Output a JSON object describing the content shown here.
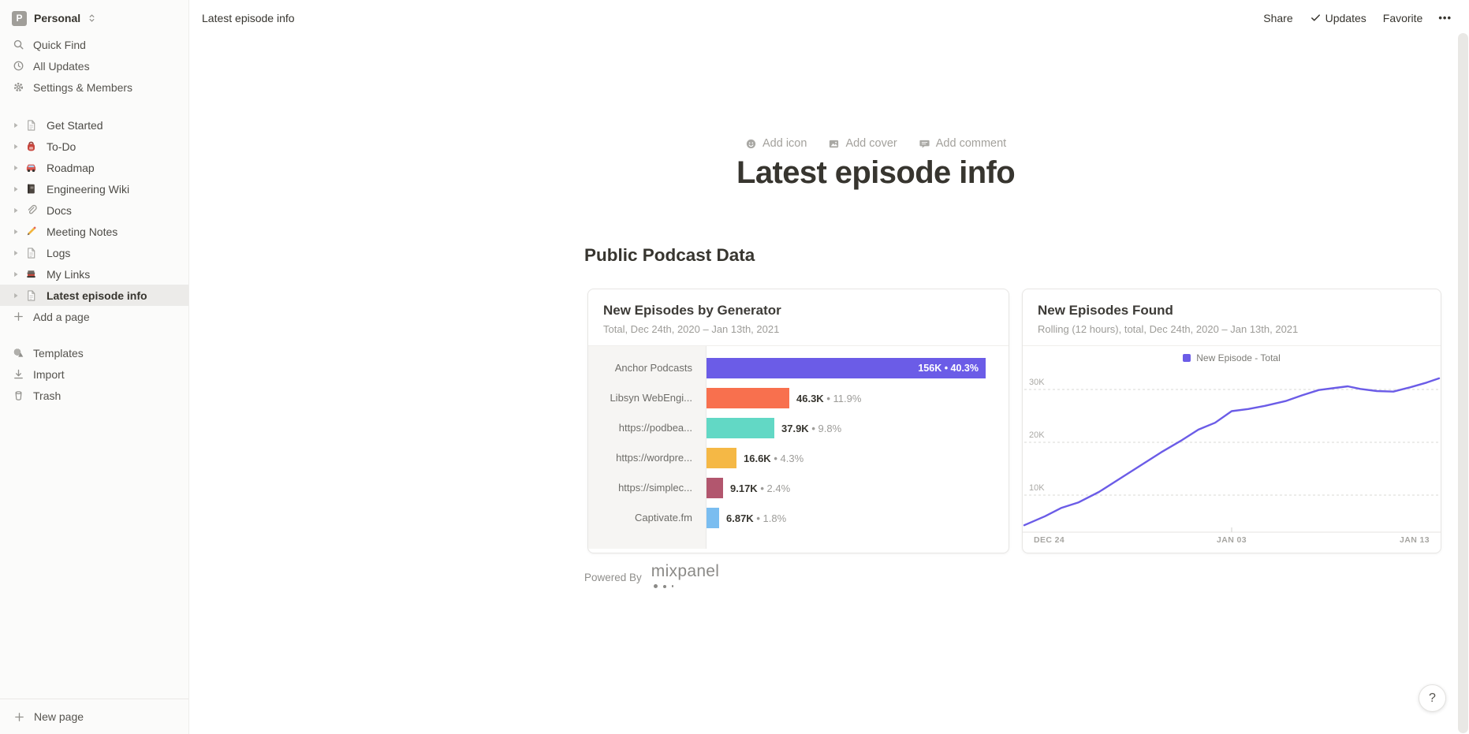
{
  "workspace": {
    "badge": "P",
    "name": "Personal"
  },
  "sidebar": {
    "top_items": [
      {
        "label": "Quick Find",
        "icon": "search-icon"
      },
      {
        "label": "All Updates",
        "icon": "clock-icon"
      },
      {
        "label": "Settings & Members",
        "icon": "gear-icon"
      }
    ],
    "pages": [
      {
        "label": "Get Started",
        "icon": "page-icon",
        "selected": false
      },
      {
        "label": "To-Do",
        "icon": "backpack-icon",
        "selected": false
      },
      {
        "label": "Roadmap",
        "icon": "car-icon",
        "selected": false
      },
      {
        "label": "Engineering Wiki",
        "icon": "notebook-icon",
        "selected": false
      },
      {
        "label": "Docs",
        "icon": "paperclip-icon",
        "selected": false
      },
      {
        "label": "Meeting Notes",
        "icon": "pencil-icon",
        "selected": false
      },
      {
        "label": "Logs",
        "icon": "page-icon",
        "selected": false
      },
      {
        "label": "My Links",
        "icon": "books-icon",
        "selected": false
      },
      {
        "label": "Latest episode info",
        "icon": "page-icon",
        "selected": true
      }
    ],
    "add_page_label": "Add a page",
    "bottom_items": [
      {
        "label": "Templates",
        "icon": "templates-icon"
      },
      {
        "label": "Import",
        "icon": "import-icon"
      },
      {
        "label": "Trash",
        "icon": "trash-icon"
      }
    ],
    "new_page_label": "New page"
  },
  "topbar": {
    "breadcrumb": "Latest episode info",
    "share_label": "Share",
    "updates_label": "Updates",
    "favorite_label": "Favorite",
    "more_label": "•••"
  },
  "page": {
    "add_icon_label": "Add icon",
    "add_cover_label": "Add cover",
    "add_comment_label": "Add comment",
    "title": "Latest episode info",
    "section_heading": "Public Podcast Data",
    "powered_by_label": "Powered By",
    "brand_label": "mixpanel"
  },
  "help_label": "?",
  "colors": {
    "accent_purple": "#6b5ce7",
    "bar_colors": [
      "#6b5ce7",
      "#f8704e",
      "#62d8c5",
      "#f5b845",
      "#b2566e",
      "#7abdf0"
    ],
    "sidebar_bg": "#fbfbfa",
    "selected_row_bg": "#ecebe9"
  },
  "chart_data": [
    {
      "type": "bar",
      "title": "New Episodes by Generator",
      "subtitle": "Total, Dec 24th, 2020 – Jan 13th, 2021",
      "categories": [
        "Anchor Podcasts",
        "Libsyn WebEngi...",
        "https://podbea...",
        "https://wordpre...",
        "https://simplec...",
        "Captivate.fm"
      ],
      "values": [
        156000,
        46300,
        37900,
        16600,
        9170,
        6870
      ],
      "value_labels": [
        "156K",
        "46.3K",
        "37.9K",
        "16.6K",
        "9.17K",
        "6.87K"
      ],
      "pct_labels": [
        "40.3%",
        "11.9%",
        "9.8%",
        "4.3%",
        "2.4%",
        "1.8%"
      ],
      "bar_colors": [
        "#6b5ce7",
        "#f8704e",
        "#62d8c5",
        "#f5b845",
        "#b2566e",
        "#7abdf0"
      ],
      "orientation": "horizontal",
      "xlabel": "",
      "ylabel": ""
    },
    {
      "type": "line",
      "title": "New Episodes Found",
      "subtitle": "Rolling (12 hours), total, Dec 24th, 2020 – Jan 13th, 2021",
      "legend": [
        {
          "name": "New Episode - Total",
          "color": "#6b5ce7"
        }
      ],
      "legend_position": "top-center",
      "grid": "dashed-horizontal",
      "ylim": [
        3000,
        35000
      ],
      "yticks": [
        {
          "label": "10K",
          "value": 10000
        },
        {
          "label": "20K",
          "value": 20000
        },
        {
          "label": "30K",
          "value": 30000
        }
      ],
      "xticks": [
        {
          "label": "DEC 24",
          "t": 0
        },
        {
          "label": "JAN 03",
          "t": 0.5
        },
        {
          "label": "JAN 13",
          "t": 1
        }
      ],
      "series": [
        {
          "name": "New Episode - Total",
          "points": [
            {
              "t": 0.0,
              "value": 4300
            },
            {
              "t": 0.05,
              "value": 6000
            },
            {
              "t": 0.09,
              "value": 7600
            },
            {
              "t": 0.13,
              "value": 8600
            },
            {
              "t": 0.18,
              "value": 10600
            },
            {
              "t": 0.23,
              "value": 13100
            },
            {
              "t": 0.28,
              "value": 15600
            },
            {
              "t": 0.33,
              "value": 18100
            },
            {
              "t": 0.38,
              "value": 20400
            },
            {
              "t": 0.42,
              "value": 22400
            },
            {
              "t": 0.46,
              "value": 23700
            },
            {
              "t": 0.5,
              "value": 25900
            },
            {
              "t": 0.54,
              "value": 26300
            },
            {
              "t": 0.58,
              "value": 26900
            },
            {
              "t": 0.63,
              "value": 27800
            },
            {
              "t": 0.67,
              "value": 28900
            },
            {
              "t": 0.71,
              "value": 29900
            },
            {
              "t": 0.75,
              "value": 30300
            },
            {
              "t": 0.78,
              "value": 30600
            },
            {
              "t": 0.81,
              "value": 30100
            },
            {
              "t": 0.85,
              "value": 29700
            },
            {
              "t": 0.89,
              "value": 29600
            },
            {
              "t": 0.93,
              "value": 30400
            },
            {
              "t": 0.97,
              "value": 31300
            },
            {
              "t": 1.0,
              "value": 32100
            }
          ]
        }
      ]
    }
  ]
}
